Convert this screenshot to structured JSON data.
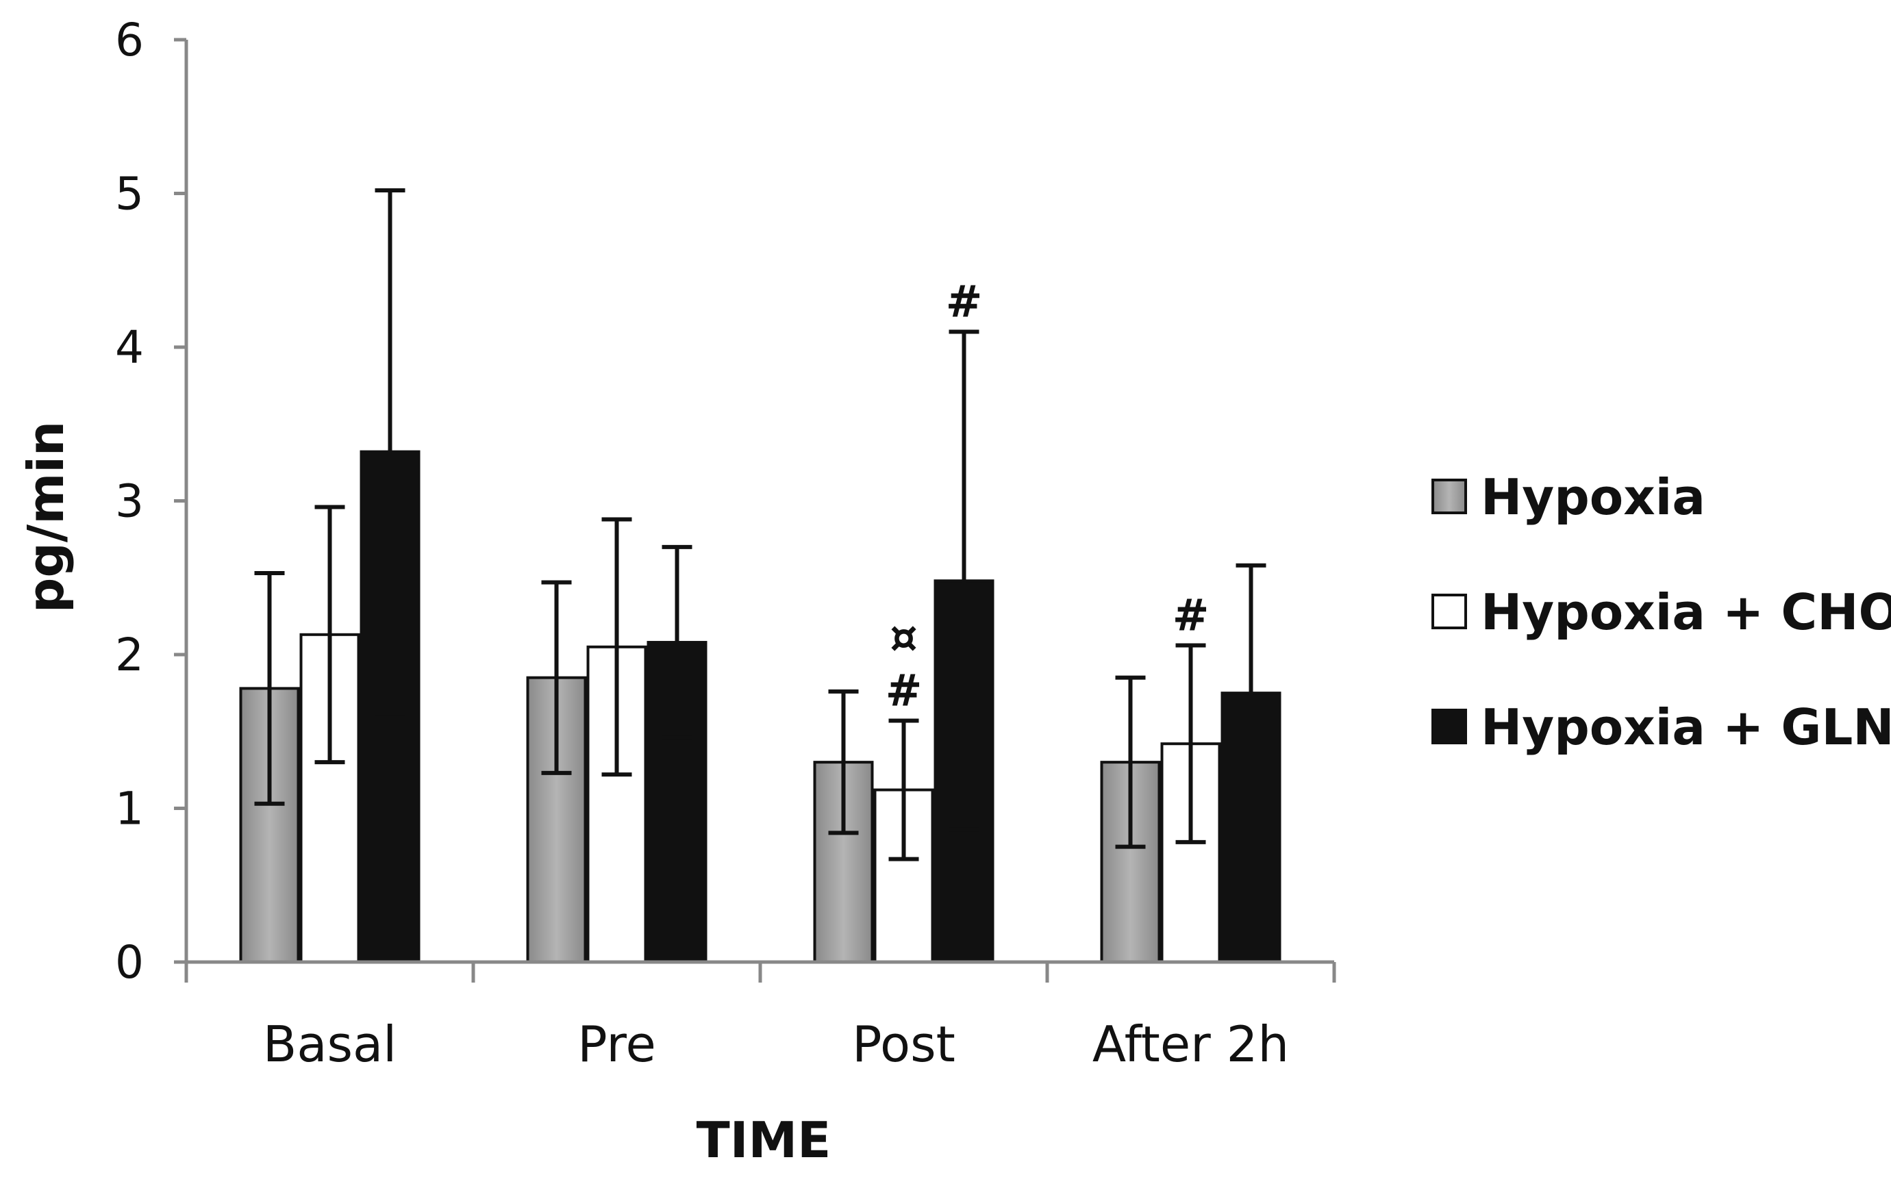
{
  "chart_data": {
    "type": "bar",
    "title": "",
    "xlabel": "TIME",
    "ylabel": "pg/min",
    "ylim": [
      0,
      6
    ],
    "yticks": [
      0,
      1,
      2,
      3,
      4,
      5,
      6
    ],
    "grid": false,
    "legend_position": "right",
    "categories": [
      "Basal",
      "Pre",
      "Post",
      "After 2h"
    ],
    "series": [
      {
        "name": "Hypoxia",
        "color": "#9a9a9a",
        "values": [
          1.78,
          1.85,
          1.3,
          1.3
        ],
        "errors": [
          0.75,
          0.62,
          0.46,
          0.55
        ]
      },
      {
        "name": "Hypoxia + CHO",
        "color": "#ffffff",
        "values": [
          2.13,
          2.05,
          1.12,
          1.42
        ],
        "errors": [
          0.83,
          0.83,
          0.45,
          0.64
        ]
      },
      {
        "name": "Hypoxia + GLN",
        "color": "#111111",
        "values": [
          3.32,
          2.08,
          2.48,
          1.75
        ],
        "errors": [
          1.7,
          0.62,
          1.62,
          0.83
        ]
      }
    ],
    "annotations": [
      {
        "category": "Post",
        "series": "Hypoxia + CHO",
        "labels": [
          "#",
          "¤"
        ]
      },
      {
        "category": "Post",
        "series": "Hypoxia + GLN",
        "labels": [
          "#"
        ]
      },
      {
        "category": "After 2h",
        "series": "Hypoxia + CHO",
        "labels": [
          "#"
        ]
      }
    ]
  }
}
